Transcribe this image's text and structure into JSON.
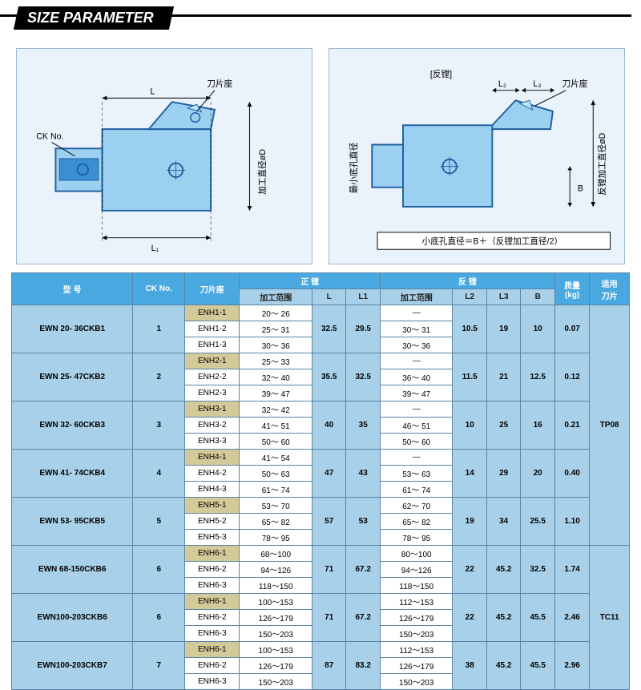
{
  "header": {
    "label": "SIZE PARAMETER"
  },
  "diagrams": {
    "left": {
      "ck_label": "CK No.",
      "holder_label": "刀片座",
      "L_label": "L",
      "L1_label": "L₁",
      "dlabel": "加工直径øD"
    },
    "right": {
      "title": "[反镗]",
      "holder_label": "刀片座",
      "L2_label": "L₂",
      "L3_label": "L₃",
      "B_label": "B",
      "min_label": "最小底孔直径",
      "dlabel": "反镗加工直径øD",
      "formula": "小底孔直径＝B＋（反镗加工直径/2）"
    }
  },
  "table": {
    "header": {
      "model": "型 号",
      "ck": "CK No.",
      "holder": "刀片座",
      "positive": "正 镗",
      "reverse": "反 镗",
      "mass": "质量\n(kg)",
      "insert": "适用\n刀片",
      "pos_range": "加工范围",
      "L": "L",
      "L1": "L1",
      "rev_range": "加工范围",
      "L2": "L2",
      "L3": "L3",
      "B": "B"
    },
    "groups": [
      {
        "model": "EWN 20- 36CKB1",
        "ck": "1",
        "L": "32.5",
        "L1": "29.5",
        "L2": "10.5",
        "L3": "19",
        "B": "10",
        "mass": "0.07",
        "insert": "TP08",
        "rows": [
          {
            "holder": "ENH1-1",
            "pos": "20～ 26",
            "rev": "—",
            "yellow": true
          },
          {
            "holder": "ENH1-2",
            "pos": "25～ 31",
            "rev": "30～ 31"
          },
          {
            "holder": "ENH1-3",
            "pos": "30～ 36",
            "rev": "30～ 36"
          }
        ]
      },
      {
        "model": "EWN 25- 47CKB2",
        "ck": "2",
        "L": "35.5",
        "L1": "32.5",
        "L2": "11.5",
        "L3": "21",
        "B": "12.5",
        "mass": "0.12",
        "rows": [
          {
            "holder": "ENH2-1",
            "pos": "25～ 33",
            "rev": "—",
            "yellow": true
          },
          {
            "holder": "ENH2-2",
            "pos": "32～ 40",
            "rev": "36～ 40"
          },
          {
            "holder": "ENH2-3",
            "pos": "39～ 47",
            "rev": "39～ 47"
          }
        ]
      },
      {
        "model": "EWN 32- 60CKB3",
        "ck": "3",
        "L": "40",
        "L1": "35",
        "L2": "10",
        "L3": "25",
        "B": "16",
        "mass": "0.21",
        "rows": [
          {
            "holder": "ENH3-1",
            "pos": "32～ 42",
            "rev": "—",
            "yellow": true
          },
          {
            "holder": "ENH3-2",
            "pos": "41～ 51",
            "rev": "46～ 51"
          },
          {
            "holder": "ENH3-3",
            "pos": "50～ 60",
            "rev": "50～ 60"
          }
        ]
      },
      {
        "model": "EWN 41- 74CKB4",
        "ck": "4",
        "L": "47",
        "L1": "43",
        "L2": "14",
        "L3": "29",
        "B": "20",
        "mass": "0.40",
        "rows": [
          {
            "holder": "ENH4-1",
            "pos": "41～ 54",
            "rev": "—",
            "yellow": true
          },
          {
            "holder": "ENH4-2",
            "pos": "50～ 63",
            "rev": "53～ 63"
          },
          {
            "holder": "ENH4-3",
            "pos": "61～ 74",
            "rev": "61～ 74"
          }
        ]
      },
      {
        "model": "EWN 53- 95CKB5",
        "ck": "5",
        "L": "57",
        "L1": "53",
        "L2": "19",
        "L3": "34",
        "B": "25.5",
        "mass": "1.10",
        "rows": [
          {
            "holder": "ENH5-1",
            "pos": "53～ 70",
            "rev": "62～ 70",
            "yellow": true
          },
          {
            "holder": "ENH5-2",
            "pos": "65～ 82",
            "rev": "65～ 82"
          },
          {
            "holder": "ENH5-3",
            "pos": "78～ 95",
            "rev": "78～ 95"
          }
        ]
      },
      {
        "model": "EWN 68-150CKB6",
        "ck": "6",
        "L": "71",
        "L1": "67.2",
        "L2": "22",
        "L3": "45.2",
        "B": "32.5",
        "mass": "1.74",
        "insert": "TC11",
        "rows": [
          {
            "holder": "ENH6-1",
            "pos": "68～100",
            "rev": "80～100",
            "yellow": true
          },
          {
            "holder": "ENH6-2",
            "pos": "94～126",
            "rev": "94～126"
          },
          {
            "holder": "ENH6-3",
            "pos": "118～150",
            "rev": "118～150"
          }
        ]
      },
      {
        "model": "EWN100-203CKB6",
        "ck": "6",
        "L": "71",
        "L1": "67.2",
        "L2": "22",
        "L3": "45.2",
        "B": "45.5",
        "mass": "2.46",
        "rows": [
          {
            "holder": "ENH6-1",
            "pos": "100～153",
            "rev": "112～153",
            "yellow": true
          },
          {
            "holder": "ENH6-2",
            "pos": "126～179",
            "rev": "126～179"
          },
          {
            "holder": "ENH6-3",
            "pos": "150～203",
            "rev": "150～203"
          }
        ]
      },
      {
        "model": "EWN100-203CKB7",
        "ck": "7",
        "L": "87",
        "L1": "83.2",
        "L2": "38",
        "L3": "45.2",
        "B": "45.5",
        "mass": "2.96",
        "rows": [
          {
            "holder": "ENH6-1",
            "pos": "100～153",
            "rev": "112～153",
            "yellow": true
          },
          {
            "holder": "ENH6-2",
            "pos": "126～179",
            "rev": "126～179"
          },
          {
            "holder": "ENH6-3",
            "pos": "150～203",
            "rev": "150～203"
          }
        ]
      }
    ],
    "insertSpans": [
      5,
      3
    ],
    "colors": {
      "header_bg": "#4aa8e0",
      "subheader_bg": "#a8d0e8",
      "cell_highlight": "#a8d0e8",
      "yellow_highlight": "#d4c998",
      "border": "#5a84a8"
    }
  }
}
